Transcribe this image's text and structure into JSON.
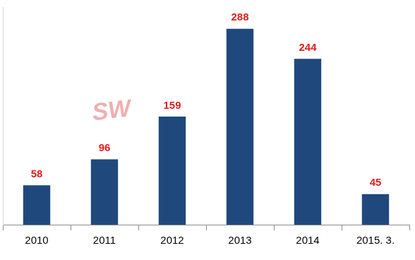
{
  "chart_data": {
    "type": "bar",
    "categories": [
      "2010",
      "2011",
      "2012",
      "2013",
      "2014",
      "2015. 3."
    ],
    "values": [
      58,
      96,
      159,
      288,
      244,
      45
    ],
    "color": "#1f497d",
    "ylim": [
      0,
      320
    ],
    "grid": false,
    "data_labels": true,
    "tick_labels": "x",
    "annotation": "SW"
  }
}
